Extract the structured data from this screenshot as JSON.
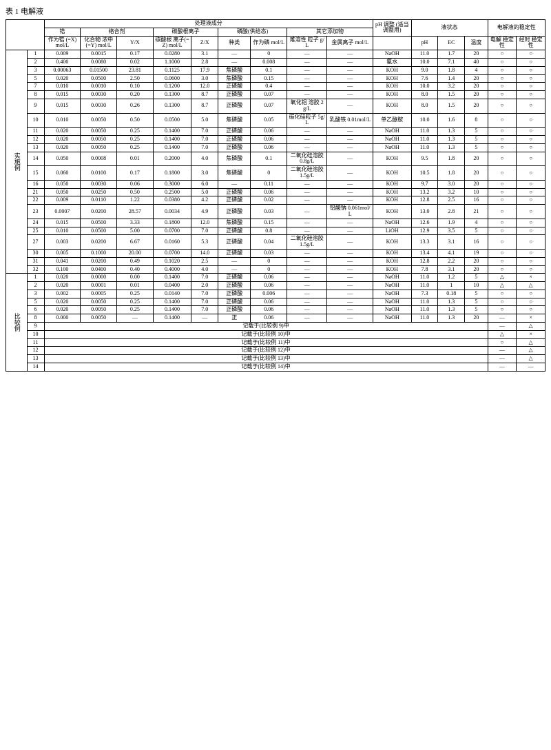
{
  "title": "表 1 电解液",
  "group_headers": {
    "main": "处理液成分",
    "chelate": "络合剂",
    "carbonate": "碳酸根离子",
    "phosphate": "磷酸(供给态)",
    "additive": "其它添加物",
    "liquid": "液状态",
    "stability": "电解液的稳定性"
  },
  "col_headers": {
    "zr": "锆",
    "x": "作为锆\n(=X)\nmol/L",
    "y": "化合物\n浓中(=Y)\nmol/L",
    "yx": "Y/X",
    "co3": "碳酸根\n离子(=Z)\nmol/L",
    "zx": "Z/X",
    "type": "种类",
    "p": "作为磷\nmol/L",
    "particle": "难溶性\n粒子 g/L",
    "metal": "金属离子\nmol/L",
    "phadj": "pH 调整\n(适当\n调整用)",
    "ph": "pH",
    "ec": "EC",
    "temp": "温度",
    "estab": "电解\n稳定性",
    "tstab": "经时\n稳定性"
  },
  "section1": "实施例",
  "section2": "比较例",
  "rows1": [
    {
      "n": "1",
      "x": "0.009",
      "y": "0.0015",
      "yx": "0.17",
      "z": "0.0280",
      "zx": "3.1",
      "t": "—",
      "p": "0",
      "pa": "—",
      "m": "—",
      "adj": "NaOH",
      "ph": "11.0",
      "ec": "1.7",
      "tp": "20",
      "e": "○",
      "s": "○"
    },
    {
      "n": "2",
      "x": "0.400",
      "y": "0.0080",
      "yx": "0.02",
      "z": "1.1000",
      "zx": "2.8",
      "t": "—",
      "p": "0.008",
      "pa": "—",
      "m": "—",
      "adj": "氨水",
      "ph": "10.0",
      "ec": "7.1",
      "tp": "40",
      "e": "○",
      "s": "○"
    },
    {
      "n": "3",
      "x": "0.00063",
      "y": "0.01500",
      "yx": "23.81",
      "z": "0.1125",
      "zx": "17.9",
      "t": "焦磷酸",
      "p": "0.1",
      "pa": "—",
      "m": "—",
      "adj": "KOH",
      "ph": "9.0",
      "ec": "1.8",
      "tp": "4",
      "e": "○",
      "s": "○"
    },
    {
      "n": "5",
      "x": "0.020",
      "y": "0.0500",
      "yx": "2.50",
      "z": "0.0600",
      "zx": "3.0",
      "t": "焦磷酸",
      "p": "0.15",
      "pa": "—",
      "m": "—",
      "adj": "KOH",
      "ph": "7.6",
      "ec": "1.4",
      "tp": "20",
      "e": "○",
      "s": "○"
    },
    {
      "n": "7",
      "x": "0.010",
      "y": "0.0010",
      "yx": "0.10",
      "z": "0.1200",
      "zx": "12.0",
      "t": "正磷酸",
      "p": "0.4",
      "pa": "—",
      "m": "—",
      "adj": "KOH",
      "ph": "10.0",
      "ec": "3.2",
      "tp": "20",
      "e": "○",
      "s": "○"
    },
    {
      "n": "8",
      "x": "0.015",
      "y": "0.0030",
      "yx": "0.20",
      "z": "0.1300",
      "zx": "8.7",
      "t": "正磷酸",
      "p": "0.07",
      "pa": "—",
      "m": "—",
      "adj": "KOH",
      "ph": "8.0",
      "ec": "1.5",
      "tp": "20",
      "e": "○",
      "s": "○"
    },
    {
      "n": "9",
      "x": "0.015",
      "y": "0.0030",
      "yx": "0.26",
      "z": "0.1300",
      "zx": "8.7",
      "t": "正磷酸",
      "p": "0.07",
      "pa": "氧化铝\n溶胶 2g/L",
      "m": "—",
      "adj": "KOH",
      "ph": "8.0",
      "ec": "1.5",
      "tp": "20",
      "e": "○",
      "s": "○"
    },
    {
      "n": "10",
      "x": "0.010",
      "y": "0.0050",
      "yx": "0.50",
      "z": "0.0500",
      "zx": "5.0",
      "t": "焦磷酸",
      "p": "0.05",
      "pa": "碳化硅粒子\n5g/L",
      "m": "乳酸铁\n0.01mol/L",
      "adj": "单乙醇胺",
      "ph": "10.0",
      "ec": "1.6",
      "tp": "8",
      "e": "○",
      "s": "○"
    },
    {
      "n": "11",
      "x": "0.020",
      "y": "0.0050",
      "yx": "0.25",
      "z": "0.1400",
      "zx": "7.0",
      "t": "正磷酸",
      "p": "0.06",
      "pa": "—",
      "m": "—",
      "adj": "NaOH",
      "ph": "11.0",
      "ec": "1.3",
      "tp": "5",
      "e": "○",
      "s": "○"
    },
    {
      "n": "12",
      "x": "0.020",
      "y": "0.0050",
      "yx": "0.25",
      "z": "0.1400",
      "zx": "7.0",
      "t": "正磷酸",
      "p": "0.06",
      "pa": "—",
      "m": "—",
      "adj": "NaOH",
      "ph": "11.0",
      "ec": "1.3",
      "tp": "5",
      "e": "○",
      "s": "○"
    },
    {
      "n": "13",
      "x": "0.020",
      "y": "0.0050",
      "yx": "0.25",
      "z": "0.1400",
      "zx": "7.0",
      "t": "正磷酸",
      "p": "0.06",
      "pa": "—",
      "m": "—",
      "adj": "NaOH",
      "ph": "11.0",
      "ec": "1.3",
      "tp": "5",
      "e": "○",
      "s": "○"
    },
    {
      "n": "14",
      "x": "0.050",
      "y": "0.0008",
      "yx": "0.01",
      "z": "0.2000",
      "zx": "4.0",
      "t": "焦磷酸",
      "p": "0.1",
      "pa": "二氧化硅溶胶\n0.8g/L",
      "m": "—",
      "adj": "KOH",
      "ph": "9.5",
      "ec": "1.8",
      "tp": "20",
      "e": "○",
      "s": "○"
    },
    {
      "n": "15",
      "x": "0.060",
      "y": "0.0100",
      "yx": "0.17",
      "z": "0.1800",
      "zx": "3.0",
      "t": "焦磷酸",
      "p": "0",
      "pa": "二氧化硅溶胶\n1.5g/L",
      "m": "—",
      "adj": "KOH",
      "ph": "10.5",
      "ec": "1.8",
      "tp": "20",
      "e": "○",
      "s": "○"
    },
    {
      "n": "16",
      "x": "0.050",
      "y": "0.0030",
      "yx": "0.06",
      "z": "0.3000",
      "zx": "6.0",
      "t": "—",
      "p": "0.11",
      "pa": "—",
      "m": "—",
      "adj": "KOH",
      "ph": "9.7",
      "ec": "3.0",
      "tp": "20",
      "e": "○",
      "s": "○"
    },
    {
      "n": "21",
      "x": "0.050",
      "y": "0.0250",
      "yx": "0.50",
      "z": "0.2500",
      "zx": "5.0",
      "t": "正磷酸",
      "p": "0.06",
      "pa": "—",
      "m": "—",
      "adj": "KOH",
      "ph": "13.2",
      "ec": "3.2",
      "tp": "10",
      "e": "○",
      "s": "○"
    },
    {
      "n": "22",
      "x": "0.009",
      "y": "0.0110",
      "yx": "1.22",
      "z": "0.0380",
      "zx": "4.2",
      "t": "正磷酸",
      "p": "0.02",
      "pa": "—",
      "m": "—",
      "adj": "KOH",
      "ph": "12.8",
      "ec": "2.5",
      "tp": "16",
      "e": "○",
      "s": "○"
    },
    {
      "n": "23",
      "x": "0.0007",
      "y": "0.0200",
      "yx": "28.57",
      "z": "0.0034",
      "zx": "4.9",
      "t": "正磷酸",
      "p": "0.03",
      "pa": "—",
      "m": "铝酸钠\n0.061mol/L",
      "adj": "KOH",
      "ph": "13.0",
      "ec": "2.8",
      "tp": "21",
      "e": "○",
      "s": "○"
    },
    {
      "n": "24",
      "x": "0.015",
      "y": "0.0500",
      "yx": "3.33",
      "z": "0.1800",
      "zx": "12.0",
      "t": "焦磷酸",
      "p": "0.15",
      "pa": "—",
      "m": "—",
      "adj": "NaOH",
      "ph": "12.6",
      "ec": "1.9",
      "tp": "4",
      "e": "○",
      "s": "○"
    },
    {
      "n": "25",
      "x": "0.010",
      "y": "0.0500",
      "yx": "5.00",
      "z": "0.0700",
      "zx": "7.0",
      "t": "正磷酸",
      "p": "0.8",
      "pa": "—",
      "m": "—",
      "adj": "LiOH",
      "ph": "12.9",
      "ec": "3.5",
      "tp": "5",
      "e": "○",
      "s": "○"
    },
    {
      "n": "27",
      "x": "0.003",
      "y": "0.0200",
      "yx": "6.67",
      "z": "0.0160",
      "zx": "5.3",
      "t": "正磷酸",
      "p": "0.04",
      "pa": "二氧化硅溶胶\n1.5g/L",
      "m": "—",
      "adj": "KOH",
      "ph": "13.3",
      "ec": "3.1",
      "tp": "16",
      "e": "○",
      "s": "○"
    },
    {
      "n": "30",
      "x": "0.005",
      "y": "0.1000",
      "yx": "20.00",
      "z": "0.0700",
      "zx": "14.0",
      "t": "正磷酸",
      "p": "0.03",
      "pa": "—",
      "m": "—",
      "adj": "KOH",
      "ph": "13.4",
      "ec": "4.1",
      "tp": "19",
      "e": "○",
      "s": "○"
    },
    {
      "n": "31",
      "x": "0.041",
      "y": "0.0200",
      "yx": "0.49",
      "z": "0.1020",
      "zx": "2.5",
      "t": "—",
      "p": "0",
      "pa": "—",
      "m": "—",
      "adj": "KOH",
      "ph": "12.8",
      "ec": "2.2",
      "tp": "20",
      "e": "○",
      "s": "○"
    },
    {
      "n": "32",
      "x": "0.100",
      "y": "0.0400",
      "yx": "0.40",
      "z": "0.4000",
      "zx": "4.0",
      "t": "—",
      "p": "0",
      "pa": "—",
      "m": "—",
      "adj": "KOH",
      "ph": "7.8",
      "ec": "3.1",
      "tp": "20",
      "e": "○",
      "s": "○"
    }
  ],
  "rows2": [
    {
      "n": "1",
      "x": "0.020",
      "y": "0.0000",
      "yx": "0.00",
      "z": "0.1400",
      "zx": "7.0",
      "t": "正磷酸",
      "p": "0.06",
      "pa": "—",
      "m": "—",
      "adj": "NaOH",
      "ph": "11.0",
      "ec": "1.2",
      "tp": "5",
      "e": "△",
      "s": "×"
    },
    {
      "n": "2",
      "x": "0.020",
      "y": "0.0001",
      "yx": "0.01",
      "z": "0.0400",
      "zx": "2.0",
      "t": "正磷酸",
      "p": "0.06",
      "pa": "—",
      "m": "—",
      "adj": "NaOH",
      "ph": "11.0",
      "ec": "1",
      "tp": "10",
      "e": "△",
      "s": "△"
    },
    {
      "n": "3",
      "x": "0.002",
      "y": "0.0005",
      "yx": "0.25",
      "z": "0.0140",
      "zx": "7.0",
      "t": "正磷酸",
      "p": "0.006",
      "pa": "—",
      "m": "—",
      "adj": "NaOH",
      "ph": "7.3",
      "ec": "0.18",
      "tp": "5",
      "e": "○",
      "s": "○"
    },
    {
      "n": "5",
      "x": "0.020",
      "y": "0.0050",
      "yx": "0.25",
      "z": "0.1400",
      "zx": "7.0",
      "t": "正磷酸",
      "p": "0.06",
      "pa": "—",
      "m": "—",
      "adj": "NaOH",
      "ph": "11.0",
      "ec": "1.3",
      "tp": "5",
      "e": "○",
      "s": "○"
    },
    {
      "n": "6",
      "x": "0.020",
      "y": "0.0050",
      "yx": "0.25",
      "z": "0.1400",
      "zx": "7.0",
      "t": "正磷酸",
      "p": "0.06",
      "pa": "—",
      "m": "—",
      "adj": "NaOH",
      "ph": "11.0",
      "ec": "1.3",
      "tp": "5",
      "e": "○",
      "s": "○"
    },
    {
      "n": "8",
      "x": "0.000",
      "y": "0.0050",
      "yx": "—",
      "z": "0.1400",
      "zx": "—",
      "t": "正",
      "p": "0.06",
      "pa": "—",
      "m": "—",
      "adj": "NaOH",
      "ph": "11.0",
      "ec": "1.3",
      "tp": "20",
      "e": "—",
      "s": "×"
    },
    {
      "n": "9",
      "note": "记载于(比较例 9)中",
      "e": "—",
      "s": "△"
    },
    {
      "n": "10",
      "note": "记载于(比较例 10)中",
      "e": "△",
      "s": "×"
    },
    {
      "n": "11",
      "note": "记载于(比较例 11)中",
      "e": "○",
      "s": "△"
    },
    {
      "n": "12",
      "note": "记载于(比较例 12)中",
      "e": "—",
      "s": "△"
    },
    {
      "n": "13",
      "note": "记载于(比较例 13)中",
      "e": "—",
      "s": "△"
    },
    {
      "n": "14",
      "note": "记载于(比较例 14)中",
      "e": "—",
      "s": "—"
    }
  ]
}
